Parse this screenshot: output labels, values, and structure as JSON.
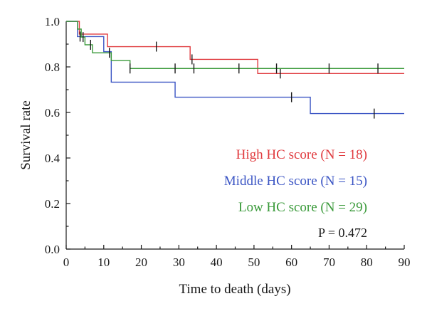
{
  "chart_data": {
    "type": "line",
    "step": true,
    "xlabel": "Time to death (days)",
    "ylabel": "Survival rate",
    "xlim": [
      0,
      90
    ],
    "ylim": [
      0,
      1
    ],
    "x_ticks": [
      0,
      10,
      20,
      30,
      40,
      50,
      60,
      70,
      80,
      90
    ],
    "x_tick_labels": [
      "0",
      "10",
      "20",
      "30",
      "40",
      "50",
      "60",
      "70",
      "80",
      "90"
    ],
    "y_ticks": [
      0,
      0.2,
      0.4,
      0.6,
      0.8,
      1.0
    ],
    "y_tick_labels": [
      "0.0",
      "0.2",
      "0.4",
      "0.6",
      "0.8",
      "1.0"
    ],
    "grid": false,
    "legend_position": "bottom-right",
    "series": [
      {
        "name": "High HC score (N = 18)",
        "color": "#e03a3e",
        "x": [
          0,
          3.5,
          6,
          11,
          33,
          51,
          90
        ],
        "y": [
          1.0,
          0.944,
          0.944,
          0.889,
          0.833,
          0.771,
          0.771
        ],
        "censored": [
          {
            "x": 24,
            "y": 0.889
          },
          {
            "x": 33.5,
            "y": 0.833
          },
          {
            "x": 57,
            "y": 0.771
          }
        ]
      },
      {
        "name": "Middle HC score (N = 15)",
        "color": "#3b55c4",
        "x": [
          0,
          3,
          10,
          12,
          29,
          65,
          90
        ],
        "y": [
          1.0,
          0.933,
          0.867,
          0.733,
          0.667,
          0.595,
          0.595
        ],
        "censored": [
          {
            "x": 3.7,
            "y": 0.933
          },
          {
            "x": 60,
            "y": 0.667
          },
          {
            "x": 82,
            "y": 0.595
          }
        ]
      },
      {
        "name": "Low HC score (N = 29)",
        "color": "#3a9a3a",
        "x": [
          0,
          3,
          4,
          5,
          7,
          10,
          12,
          17,
          90
        ],
        "y": [
          1.0,
          0.966,
          0.931,
          0.897,
          0.862,
          0.862,
          0.828,
          0.793,
          0.793
        ],
        "censored": [
          {
            "x": 4.5,
            "y": 0.931
          },
          {
            "x": 6.5,
            "y": 0.897
          },
          {
            "x": 11.5,
            "y": 0.862
          },
          {
            "x": 17,
            "y": 0.793
          },
          {
            "x": 29,
            "y": 0.793
          },
          {
            "x": 34,
            "y": 0.793
          },
          {
            "x": 46,
            "y": 0.793
          },
          {
            "x": 56,
            "y": 0.793
          },
          {
            "x": 70,
            "y": 0.793
          },
          {
            "x": 83,
            "y": 0.793
          }
        ]
      }
    ],
    "annotations": [
      {
        "text": "P = 0.472"
      }
    ]
  }
}
